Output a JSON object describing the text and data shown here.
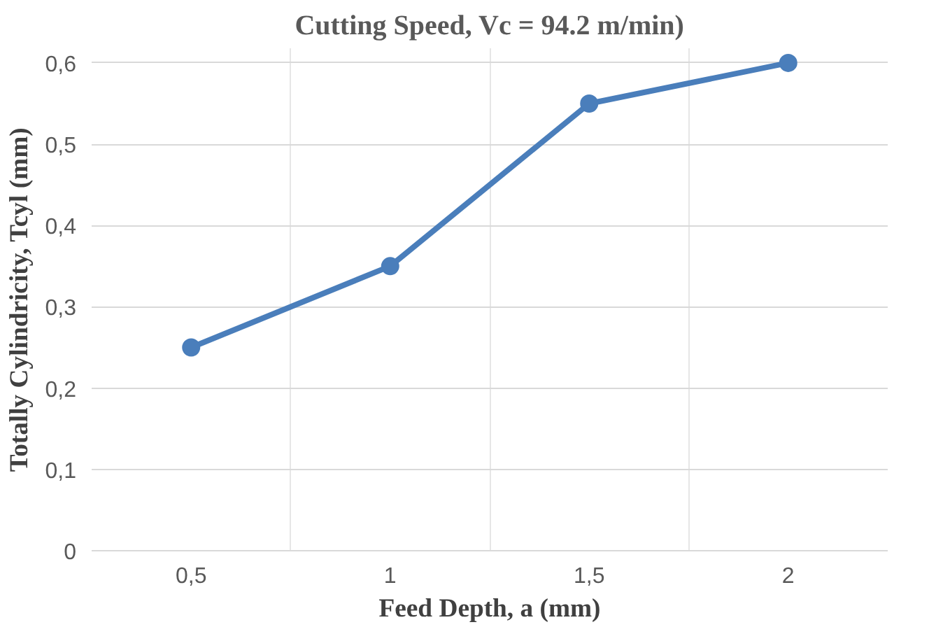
{
  "chart_data": {
    "type": "line",
    "title": "Cutting Speed, Vc = 94.2 m/min)",
    "xlabel": "Feed Depth, a (mm)",
    "ylabel": "Totally Cylindricity, Tcyl (mm)",
    "categories": [
      "0,5",
      "1",
      "1,5",
      "2"
    ],
    "series": [
      {
        "color": "#4a7ebb",
        "values": [
          0.25,
          0.35,
          0.55,
          0.6
        ]
      }
    ],
    "ylim": [
      0,
      0.6
    ],
    "yticks": [
      0,
      {
        "value": 0.1,
        "label": "0,1"
      },
      {
        "value": 0.2,
        "label": "0,2"
      },
      {
        "value": 0.3,
        "label": "0,3"
      },
      {
        "value": 0.4,
        "label": "0,4"
      },
      {
        "value": 0.5,
        "label": "0,5"
      },
      {
        "value": 0.6,
        "label": "0,6"
      }
    ],
    "grid": true,
    "marker": "circle",
    "line_style": "solid"
  }
}
